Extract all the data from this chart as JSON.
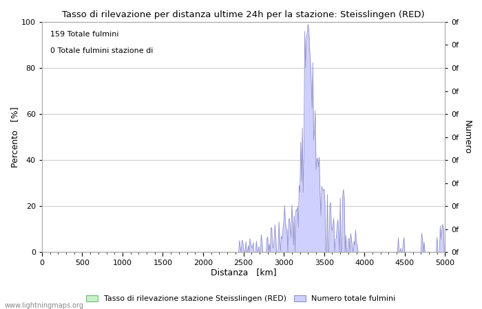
{
  "title": "Tasso di rilevazione per distanza ultime 24h per la stazione: Steisslingen (RED)",
  "xlabel": "Distanza   [km]",
  "ylabel_left": "Percento   [%]",
  "ylabel_right": "Numero",
  "annotation_line1": "159 Totale fulmini",
  "annotation_line2": "0 Totale fulmini stazione di",
  "watermark": "www.lightningmaps.org",
  "xlim": [
    0,
    5000
  ],
  "ylim_left": [
    0,
    100
  ],
  "xticks": [
    0,
    500,
    1000,
    1500,
    2000,
    2500,
    3000,
    3500,
    4000,
    4500,
    5000
  ],
  "yticks_left": [
    0,
    20,
    40,
    60,
    80,
    100
  ],
  "legend_green_label": "Tasso di rilevazione stazione Steisslingen (RED)",
  "legend_blue_label": "Numero totale fulmini",
  "fill_green_color": "#c8f0c8",
  "fill_green_edge": "#70b870",
  "fill_blue_color": "#d0d0ff",
  "fill_blue_edge": "#9090c8",
  "bg_color": "#ffffff",
  "grid_color": "#cccccc"
}
